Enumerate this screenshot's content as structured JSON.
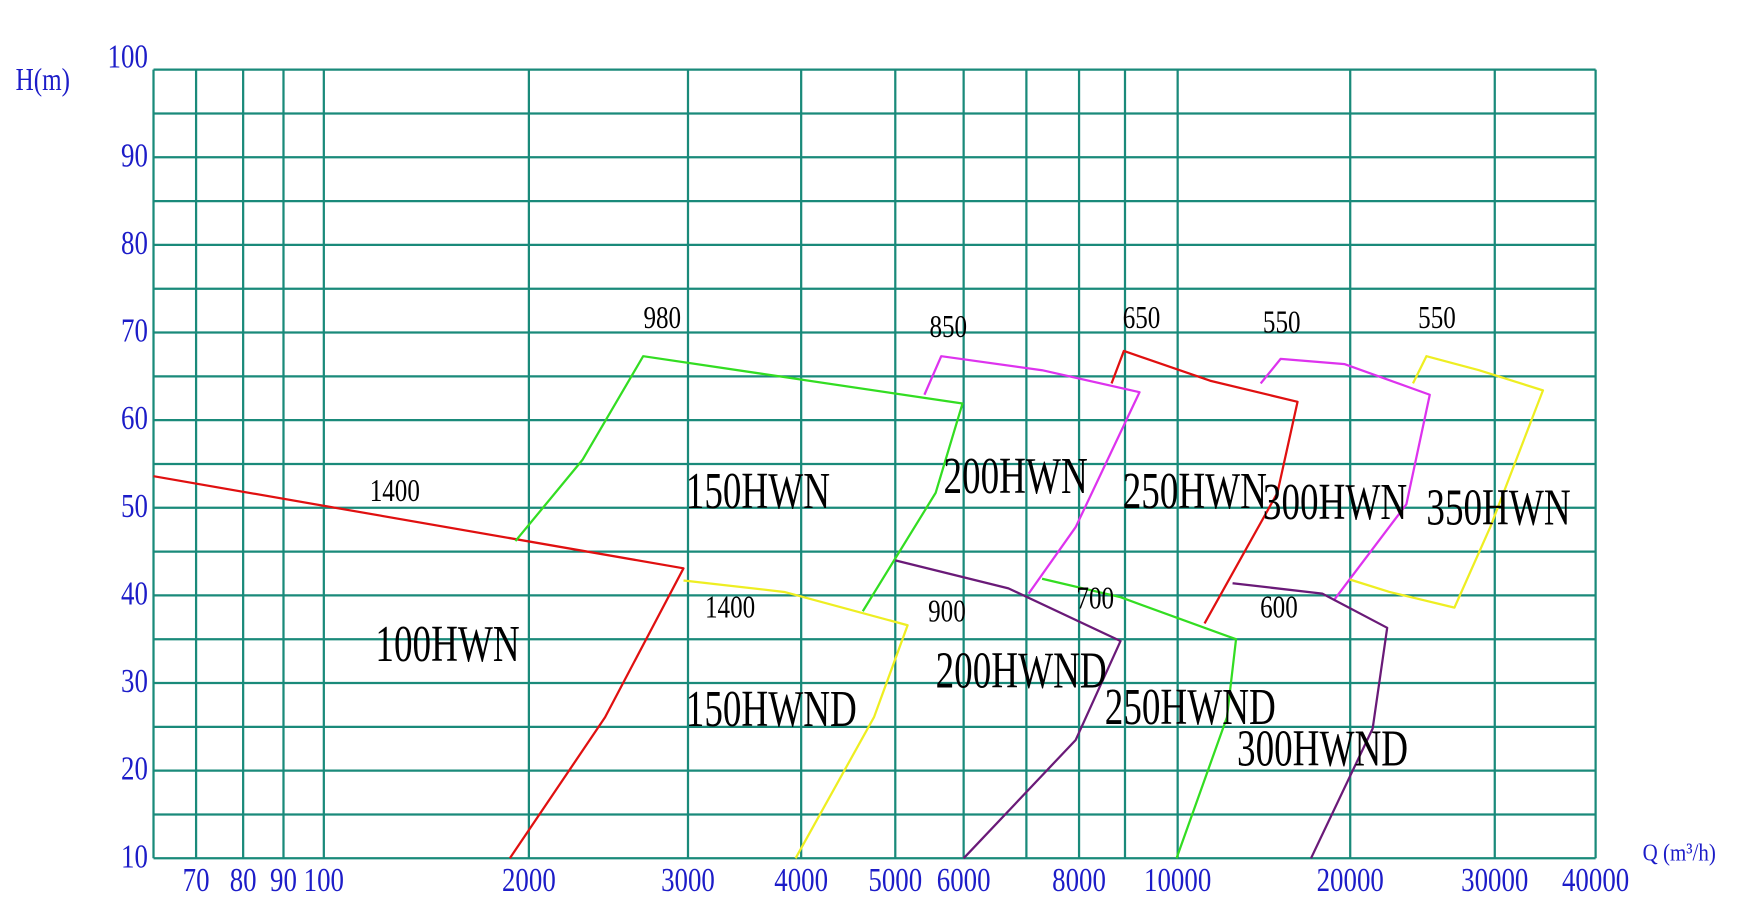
{
  "chart_data": {
    "type": "line",
    "title": "",
    "xlabel": "Q (m³/h)",
    "ylabel": "H(m)",
    "xscale": "non-uniform (log-like)",
    "ylim": [
      10,
      100
    ],
    "grid": true,
    "y_ticks": [
      100,
      90,
      80,
      70,
      60,
      50,
      40,
      30,
      20,
      10
    ],
    "y_grid_step": 5,
    "x_ticks": [
      70,
      80,
      90,
      100,
      2000,
      3000,
      4000,
      5000,
      6000,
      8000,
      10000,
      20000,
      30000,
      40000
    ],
    "x_grid": [
      60,
      70,
      80,
      90,
      100,
      2000,
      3000,
      4000,
      5000,
      6000,
      7000,
      8000,
      9000,
      10000,
      20000,
      30000,
      40000
    ],
    "colors": {
      "grid": "#1a8a7a",
      "axis_text": "#1c1cc8",
      "red": "#e01010",
      "green": "#33dd22",
      "yellow": "#eeee22",
      "magenta": "#dd33ee",
      "purple": "#6a1a78"
    },
    "series": [
      {
        "name": "100HWN",
        "color": "#e01010",
        "speed": "1400",
        "points": [
          [
            60,
            53.6
          ],
          [
            2972,
            43.1
          ],
          [
            2479,
            26.1
          ],
          [
            1823,
            10
          ]
        ],
        "speed_pos": [
          525,
          50.8
        ],
        "label_pos": [
          578,
          34.8
        ]
      },
      {
        "name": "150HWN",
        "color": "#33dd22",
        "speed": "980",
        "points": [
          [
            1875,
            46.2
          ],
          [
            2338,
            55.5
          ],
          [
            2718,
            67.3
          ],
          [
            5984,
            61.9
          ],
          [
            5590,
            51.7
          ],
          [
            4655,
            38.2
          ]
        ],
        "speed_pos": [
          2720,
          70.5
        ],
        "label_pos": [
          2986,
          52.3
        ]
      },
      {
        "name": "150HWND",
        "color": "#eeee22",
        "speed": "1400",
        "points": [
          [
            2972,
            41.7
          ],
          [
            3851,
            40.4
          ],
          [
            5180,
            36.6
          ],
          [
            4774,
            26.1
          ],
          [
            3950,
            10
          ]
        ],
        "speed_pos": [
          3150,
          37.5
        ],
        "label_pos": [
          2986,
          27.4
        ]
      },
      {
        "name": "200HWN",
        "color": "#dd33ee",
        "speed": "850",
        "points": [
          [
            5426,
            62.9
          ],
          [
            5672,
            67.3
          ],
          [
            7298,
            65.7
          ],
          [
            9277,
            63.2
          ],
          [
            7936,
            47.8
          ],
          [
            7043,
            40.2
          ]
        ],
        "speed_pos": [
          5500,
          69.5
        ],
        "label_pos": [
          5705,
          54
        ]
      },
      {
        "name": "200HWND",
        "color": "#6a1a78",
        "speed": "900",
        "points": [
          [
            5000,
            44.0
          ],
          [
            6714,
            40.8
          ],
          [
            8902,
            34.8
          ],
          [
            7936,
            23.5
          ],
          [
            6000,
            10
          ]
        ],
        "speed_pos": [
          5480,
          37.0
        ],
        "label_pos": [
          5590,
          31.8
        ]
      },
      {
        "name": "250HWN",
        "color": "#e01010",
        "speed": "650",
        "points": [
          [
            8707,
            64.2
          ],
          [
            8976,
            67.9
          ],
          [
            11880,
            64.5
          ],
          [
            16950,
            62.1
          ],
          [
            15780,
            51.7
          ],
          [
            11560,
            36.8
          ]
        ],
        "speed_pos": [
          8950,
          70.5
        ],
        "label_pos": [
          8950,
          52.3
        ]
      },
      {
        "name": "250HWND",
        "color": "#33dd22",
        "speed": "700",
        "points": [
          [
            7298,
            41.9
          ],
          [
            8902,
            39.8
          ],
          [
            13380,
            35.0
          ],
          [
            12860,
            26.1
          ],
          [
            9979,
            10
          ]
        ],
        "speed_pos": [
          7950,
          38.5
        ],
        "label_pos": [
          8560,
          27.6
        ]
      },
      {
        "name": "300HWN",
        "color": "#dd33ee",
        "speed": "550",
        "points": [
          [
            14810,
            64.2
          ],
          [
            15970,
            67.0
          ],
          [
            19680,
            66.4
          ],
          [
            25500,
            62.9
          ],
          [
            23880,
            50.4
          ],
          [
            19030,
            39.4
          ]
        ],
        "speed_pos": [
          14940,
          70.0
        ],
        "label_pos": [
          14940,
          51
        ]
      },
      {
        "name": "300HWND",
        "color": "#6a1a78",
        "speed": "600",
        "points": [
          [
            13180,
            41.4
          ],
          [
            18380,
            40.2
          ],
          [
            22560,
            36.3
          ],
          [
            21550,
            24.8
          ],
          [
            17730,
            10
          ]
        ],
        "speed_pos": [
          14780,
          37.5
        ],
        "label_pos": [
          13440,
          22.9
        ]
      },
      {
        "name": "350HWN",
        "color": "#eeee22",
        "speed": "550",
        "points": [
          [
            24340,
            64.2
          ],
          [
            25270,
            67.3
          ],
          [
            28910,
            65.7
          ],
          [
            34780,
            63.4
          ],
          [
            29690,
            47.8
          ],
          [
            27210,
            38.6
          ],
          [
            22710,
            40.4
          ],
          [
            20000,
            41.8
          ]
        ],
        "speed_pos": [
          24700,
          70.5
        ],
        "label_pos": [
          25270,
          50.4
        ]
      }
    ]
  }
}
